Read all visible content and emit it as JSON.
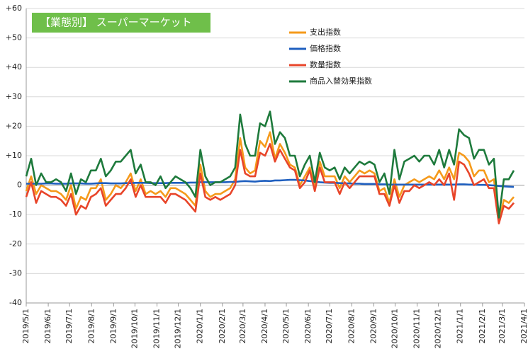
{
  "chart_data": {
    "type": "line",
    "title": "【業態別】 スーパーマーケット",
    "x": [
      "2019/5/1",
      "2019/5/8",
      "2019/5/15",
      "2019/5/22",
      "2019/5/29",
      "2019/6/5",
      "2019/6/12",
      "2019/6/19",
      "2019/6/26",
      "2019/7/3",
      "2019/7/10",
      "2019/7/17",
      "2019/7/24",
      "2019/7/31",
      "2019/8/7",
      "2019/8/14",
      "2019/8/21",
      "2019/8/28",
      "2019/9/4",
      "2019/9/11",
      "2019/9/18",
      "2019/9/25",
      "2019/10/2",
      "2019/10/9",
      "2019/10/16",
      "2019/10/23",
      "2019/10/30",
      "2019/11/6",
      "2019/11/13",
      "2019/11/20",
      "2019/11/27",
      "2019/12/4",
      "2019/12/11",
      "2019/12/18",
      "2019/12/25",
      "2020/1/1",
      "2020/1/8",
      "2020/1/15",
      "2020/1/22",
      "2020/1/29",
      "2020/2/5",
      "2020/2/12",
      "2020/2/19",
      "2020/2/26",
      "2020/3/4",
      "2020/3/11",
      "2020/3/18",
      "2020/3/25",
      "2020/4/1",
      "2020/4/8",
      "2020/4/15",
      "2020/4/22",
      "2020/4/29",
      "2020/5/6",
      "2020/5/13",
      "2020/5/20",
      "2020/5/27",
      "2020/6/3",
      "2020/6/10",
      "2020/6/17",
      "2020/6/24",
      "2020/7/1",
      "2020/7/8",
      "2020/7/15",
      "2020/7/22",
      "2020/7/29",
      "2020/8/5",
      "2020/8/12",
      "2020/8/19",
      "2020/8/26",
      "2020/9/2",
      "2020/9/9",
      "2020/9/16",
      "2020/9/23",
      "2020/9/30",
      "2020/10/7",
      "2020/10/14",
      "2020/10/21",
      "2020/10/28",
      "2020/11/4",
      "2020/11/11",
      "2020/11/18",
      "2020/11/25",
      "2020/12/2",
      "2020/12/9",
      "2020/12/16",
      "2020/12/23",
      "2020/12/30",
      "2021/1/6",
      "2021/1/13",
      "2021/1/20",
      "2021/1/27",
      "2021/2/3",
      "2021/2/10",
      "2021/2/17",
      "2021/2/24",
      "2021/3/3",
      "2021/3/10",
      "2021/3/17"
    ],
    "series": [
      {
        "name": "支出指数",
        "color": "#f59a1b",
        "values": [
          -2,
          3,
          -3,
          0,
          -1,
          -2,
          -2,
          -3,
          -5,
          0,
          -8,
          -4,
          -5,
          -1,
          -1,
          2,
          -5,
          -3,
          0,
          -1,
          1,
          4,
          -2,
          2,
          -3,
          -2,
          -3,
          -2,
          -4,
          -1,
          -1,
          -2,
          -3,
          -5,
          -7,
          7,
          -2,
          -4,
          -3,
          -3,
          -2,
          -1,
          2,
          16,
          6,
          4,
          5,
          15,
          13,
          18,
          9,
          14,
          11,
          7,
          6,
          0,
          3,
          6,
          -1,
          8,
          3,
          3,
          3,
          -1,
          3,
          1,
          3,
          5,
          4,
          5,
          4,
          -2,
          -1,
          -6,
          2,
          -4,
          0,
          1,
          2,
          1,
          2,
          3,
          2,
          5,
          2,
          6,
          2,
          11,
          10,
          8,
          3,
          5,
          5,
          1,
          2,
          -12,
          -5,
          -6,
          -4
        ]
      },
      {
        "name": "価格指数",
        "color": "#1f5fbf",
        "values": [
          0.5,
          0.5,
          0.5,
          0.5,
          0.6,
          0.6,
          0.5,
          0.5,
          0.5,
          0.6,
          0.6,
          0.6,
          0.5,
          0.5,
          0.6,
          0.7,
          0.7,
          0.6,
          0.6,
          0.6,
          0.7,
          0.7,
          0.8,
          0.8,
          0.8,
          0.7,
          0.7,
          0.7,
          0.7,
          0.8,
          0.8,
          0.8,
          0.8,
          0.9,
          0.9,
          1.0,
          1.0,
          1.0,
          1.0,
          1.0,
          1.0,
          1.1,
          1.1,
          1.3,
          1.4,
          1.3,
          1.2,
          1.4,
          1.5,
          1.4,
          1.6,
          1.6,
          1.7,
          1.8,
          1.8,
          1.7,
          1.6,
          1.4,
          1.2,
          1.0,
          0.9,
          0.8,
          0.8,
          0.7,
          0.6,
          0.6,
          0.5,
          0.5,
          0.4,
          0.4,
          0.4,
          0.3,
          0.3,
          0.2,
          0.2,
          0.2,
          0.2,
          0.2,
          0.2,
          0.2,
          0.2,
          0.2,
          0.2,
          0.2,
          0.2,
          0.2,
          0.2,
          0.3,
          0.3,
          0.2,
          0.2,
          0.1,
          0.1,
          0.0,
          -0.1,
          -0.3,
          -0.4,
          -0.5,
          -0.6
        ]
      },
      {
        "name": "数量指数",
        "color": "#e8452a",
        "values": [
          -4,
          1,
          -6,
          -2,
          -3,
          -4,
          -4,
          -5,
          -7,
          -3,
          -10,
          -7,
          -8,
          -4,
          -3,
          -1,
          -7,
          -5,
          -3,
          -3,
          -1,
          2,
          -4,
          0,
          -4,
          -4,
          -4,
          -4,
          -6,
          -3,
          -3,
          -4,
          -5,
          -7,
          -9,
          4,
          -4,
          -5,
          -4,
          -5,
          -4,
          -3,
          0,
          12,
          4,
          3,
          3,
          11,
          10,
          14,
          8,
          12,
          9,
          6,
          5,
          -1,
          1,
          5,
          -2,
          6,
          1,
          1,
          1,
          -3,
          1,
          -1,
          1,
          3,
          3,
          3,
          3,
          -3,
          -3,
          -7,
          0,
          -6,
          -2,
          -2,
          0,
          -1,
          0,
          1,
          0,
          2,
          0,
          4,
          -5,
          8,
          7,
          4,
          0,
          1,
          2,
          -1,
          -1,
          -13,
          -7,
          -8,
          -6
        ]
      },
      {
        "name": "商品入替効果指数",
        "color": "#1e7a3c",
        "values": [
          3,
          9,
          0,
          4,
          1,
          1,
          2,
          1,
          -2,
          4,
          -3,
          2,
          1,
          5,
          5,
          9,
          3,
          5,
          8,
          8,
          10,
          12,
          4,
          7,
          1,
          1,
          0,
          3,
          -1,
          1,
          3,
          2,
          1,
          -1,
          -4,
          12,
          3,
          0,
          1,
          1,
          2,
          3,
          6,
          24,
          14,
          10,
          10,
          21,
          20,
          25,
          14,
          18,
          16,
          10,
          10,
          3,
          7,
          10,
          1,
          11,
          6,
          5,
          6,
          2,
          6,
          4,
          6,
          8,
          7,
          8,
          7,
          1,
          4,
          -3,
          12,
          2,
          8,
          9,
          10,
          8,
          10,
          10,
          7,
          12,
          6,
          12,
          7,
          19,
          17,
          16,
          9,
          12,
          12,
          7,
          9,
          -11,
          2,
          2,
          5
        ]
      }
    ],
    "xlim": [
      "2019/5/1",
      "2021/4/1"
    ],
    "xticks": [
      "2019/5/1",
      "2019/6/1",
      "2019/7/1",
      "2019/8/1",
      "2019/9/1",
      "2019/10/1",
      "2019/11/1",
      "2019/12/1",
      "2020/1/1",
      "2020/2/1",
      "2020/3/1",
      "2020/4/1",
      "2020/5/1",
      "2020/6/1",
      "2020/7/1",
      "2020/8/1",
      "2020/9/1",
      "2020/10/1",
      "2020/11/1",
      "2020/12/1",
      "2021/1/1",
      "2021/2/1",
      "2021/3/1",
      "2021/4/1"
    ],
    "ylim": [
      -40,
      60
    ],
    "yticks": [
      -40,
      -30,
      -20,
      -10,
      0,
      {
        "value": 10,
        "label": "+10"
      },
      {
        "value": 20,
        "label": "+20"
      },
      {
        "value": 30,
        "label": "+30"
      },
      {
        "value": 40,
        "label": "+40"
      },
      {
        "value": 50,
        "label": "+50"
      },
      {
        "value": 60,
        "label": "+60"
      }
    ],
    "grid": true,
    "title_color": "#6fbf4a"
  }
}
